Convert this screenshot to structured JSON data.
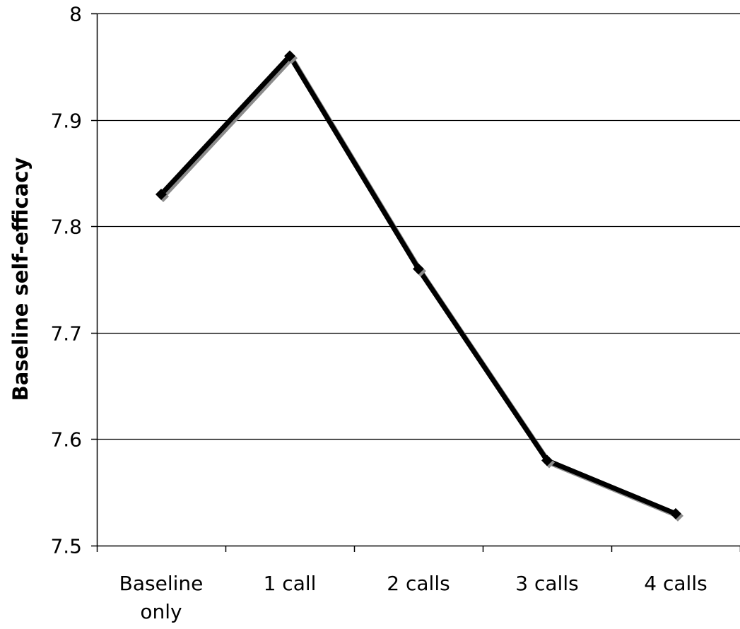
{
  "chart_data": {
    "type": "line",
    "title": "",
    "xlabel": "",
    "ylabel": "Baseline self-efficacy",
    "categories": [
      [
        "Baseline",
        "only"
      ],
      [
        "1 call"
      ],
      [
        "2 calls"
      ],
      [
        "3 calls"
      ],
      [
        "4 calls"
      ]
    ],
    "series": [
      {
        "values": [
          7.83,
          7.96,
          7.76,
          7.58,
          7.53
        ],
        "color": "#000000",
        "shadow_color": "#8c8c8c",
        "marker": "diamond"
      }
    ],
    "ylim": [
      7.5,
      8.0
    ],
    "yticks": [
      7.5,
      7.6,
      7.7,
      7.8,
      7.9,
      8.0
    ],
    "ytick_labels": [
      "7.5",
      "7.6",
      "7.7",
      "7.8",
      "7.9",
      "8"
    ],
    "grid": "horizontal",
    "legend": "none"
  }
}
